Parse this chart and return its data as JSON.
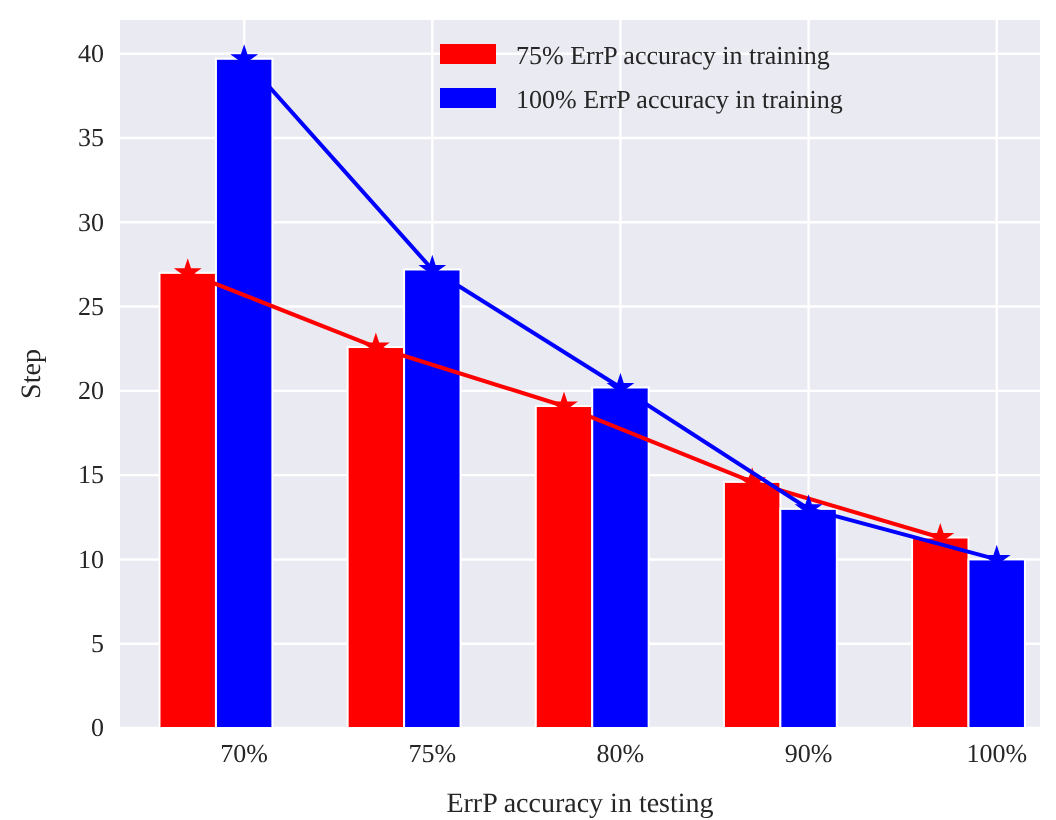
{
  "chart_data": {
    "type": "bar",
    "xlabel": "ErrP accuracy in testing",
    "ylabel": "Step",
    "categories": [
      "70%",
      "75%",
      "80%",
      "90%",
      "100%"
    ],
    "series": [
      {
        "name": "75% ErrP accuracy in training",
        "color": "#ff0000",
        "values": [
          27.0,
          22.6,
          19.1,
          14.6,
          11.3
        ]
      },
      {
        "name": "100% ErrP accuracy in training",
        "color": "#0000ff",
        "values": [
          39.7,
          27.2,
          20.2,
          13.0,
          10.0
        ]
      },
      {
        "type": "line",
        "color": "#ff0000",
        "values": [
          27.0,
          22.6,
          19.1,
          14.6,
          11.3
        ],
        "marker": "star"
      },
      {
        "type": "line",
        "color": "#0000ff",
        "values": [
          39.7,
          27.2,
          20.2,
          13.0,
          10.0
        ],
        "marker": "star"
      }
    ],
    "ylim": [
      0,
      42
    ],
    "yticks": [
      0,
      5,
      10,
      15,
      20,
      25,
      30,
      35,
      40
    ],
    "grid": true,
    "legend": "top right"
  }
}
